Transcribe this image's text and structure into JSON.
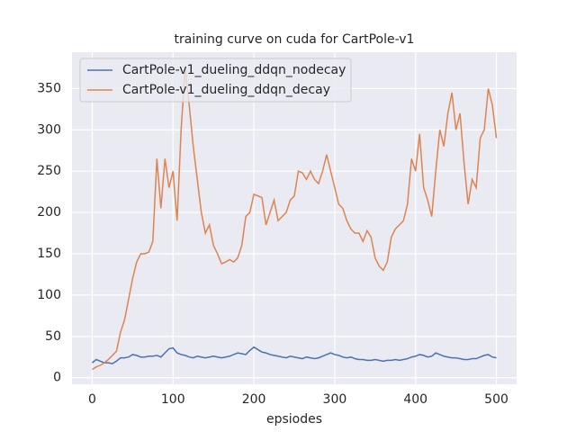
{
  "chart_data": {
    "type": "line",
    "title": "training curve on cuda for CartPole-v1",
    "x_label": "epsiodes",
    "x": [
      0,
      5,
      10,
      15,
      20,
      25,
      30,
      35,
      40,
      45,
      50,
      55,
      60,
      65,
      70,
      75,
      80,
      85,
      90,
      95,
      100,
      105,
      110,
      115,
      120,
      125,
      130,
      135,
      140,
      145,
      150,
      155,
      160,
      165,
      170,
      175,
      180,
      185,
      190,
      195,
      200,
      205,
      210,
      215,
      220,
      225,
      230,
      235,
      240,
      245,
      250,
      255,
      260,
      265,
      270,
      275,
      280,
      285,
      290,
      295,
      300,
      305,
      310,
      315,
      320,
      325,
      330,
      335,
      340,
      345,
      350,
      355,
      360,
      365,
      370,
      375,
      380,
      385,
      390,
      395,
      400,
      405,
      410,
      415,
      420,
      425,
      430,
      435,
      440,
      445,
      450,
      455,
      460,
      465,
      470,
      475,
      480,
      485,
      490,
      495,
      500
    ],
    "series": [
      {
        "name": "CartPole-v1_dueling_ddqn_nodecay",
        "color": "#4c72b0",
        "values": [
          18,
          22,
          20,
          18,
          18,
          17,
          20,
          24,
          24,
          25,
          28,
          27,
          25,
          25,
          26,
          26,
          27,
          25,
          30,
          35,
          36,
          30,
          28,
          27,
          25,
          24,
          26,
          25,
          24,
          25,
          26,
          25,
          24,
          25,
          26,
          28,
          30,
          29,
          28,
          33,
          37,
          34,
          31,
          30,
          28,
          27,
          26,
          25,
          24,
          26,
          25,
          24,
          23,
          25,
          24,
          23,
          24,
          26,
          28,
          30,
          28,
          27,
          25,
          24,
          25,
          23,
          22,
          22,
          21,
          21,
          22,
          21,
          20,
          21,
          21,
          22,
          21,
          22,
          23,
          25,
          26,
          28,
          27,
          25,
          26,
          30,
          28,
          26,
          25,
          24,
          24,
          23,
          22,
          22,
          23,
          23,
          25,
          27,
          28,
          25,
          24
        ]
      },
      {
        "name": "CartPole-v1_dueling_ddqn_decay",
        "color": "#dd8452",
        "values": [
          10,
          13,
          15,
          18,
          22,
          27,
          32,
          55,
          70,
          95,
          120,
          140,
          150,
          150,
          152,
          165,
          265,
          205,
          265,
          230,
          250,
          190,
          300,
          375,
          330,
          280,
          240,
          200,
          175,
          185,
          160,
          150,
          138,
          140,
          143,
          140,
          145,
          160,
          195,
          200,
          222,
          220,
          218,
          185,
          200,
          215,
          190,
          195,
          200,
          215,
          220,
          250,
          248,
          240,
          250,
          240,
          235,
          250,
          270,
          250,
          230,
          210,
          205,
          190,
          180,
          175,
          175,
          165,
          178,
          170,
          145,
          135,
          130,
          140,
          170,
          180,
          185,
          190,
          210,
          265,
          250,
          295,
          230,
          215,
          195,
          250,
          300,
          280,
          320,
          345,
          300,
          320,
          260,
          210,
          240,
          230,
          290,
          300,
          350,
          330,
          290
        ]
      }
    ],
    "xlim": [
      -25,
      525
    ],
    "xticks": [
      0,
      100,
      200,
      300,
      400,
      500
    ],
    "ylim": [
      -8,
      394
    ],
    "yticks": [
      0,
      50,
      100,
      150,
      200,
      250,
      300,
      350
    ],
    "grid": true,
    "legend": "upper left"
  }
}
